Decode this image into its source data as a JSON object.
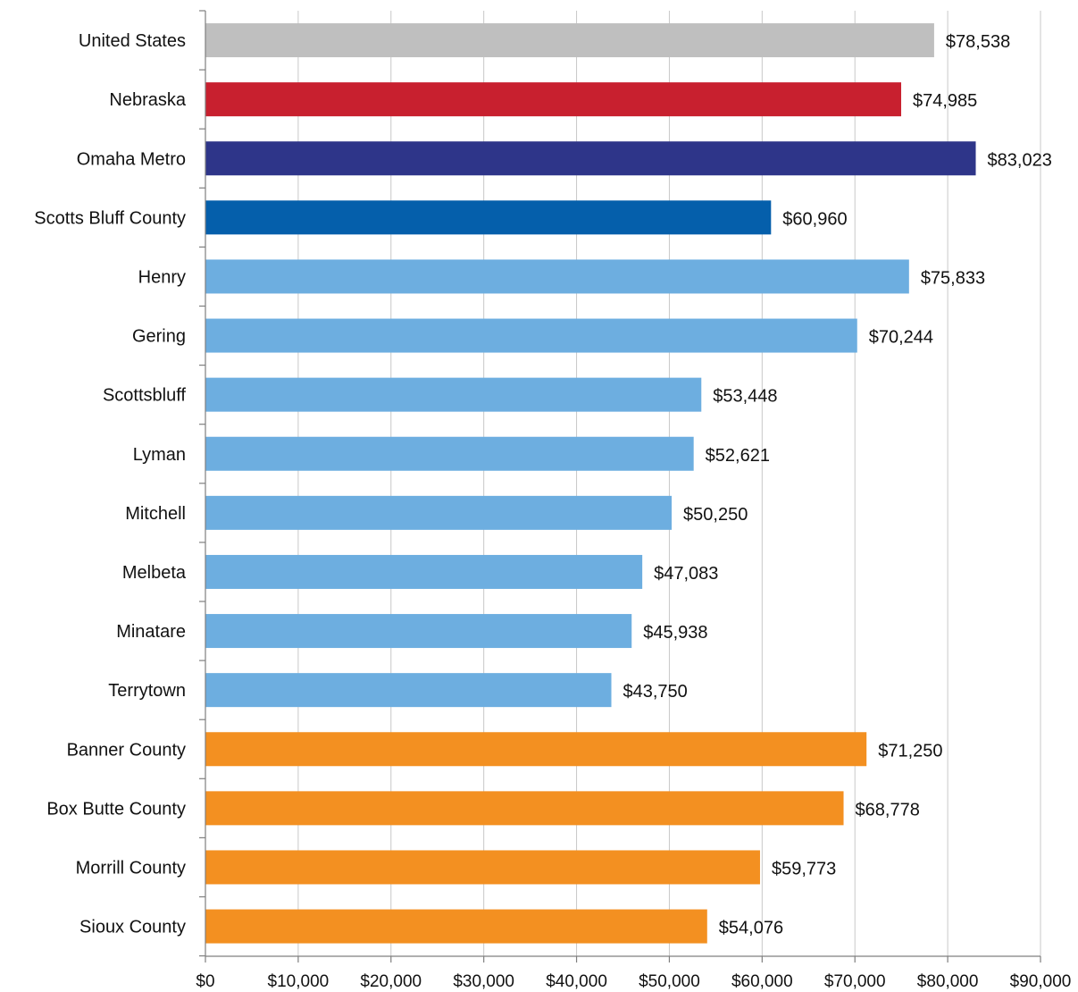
{
  "chart_data": {
    "type": "bar",
    "orientation": "horizontal",
    "title": "",
    "xlabel": "",
    "ylabel": "",
    "xlim": [
      0,
      90000
    ],
    "x_ticks": [
      0,
      10000,
      20000,
      30000,
      40000,
      50000,
      60000,
      70000,
      80000,
      90000
    ],
    "x_tick_labels": [
      "$0",
      "$10,000",
      "$20,000",
      "$30,000",
      "$40,000",
      "$50,000",
      "$60,000",
      "$70,000",
      "$80,000",
      "$90,000"
    ],
    "grid": "vertical gridlines on",
    "legend": "none",
    "categories": [
      "United States",
      "Nebraska",
      "Omaha Metro",
      "Scotts Bluff County",
      "Henry",
      "Gering",
      "Scottsbluff",
      "Lyman",
      "Mitchell",
      "Melbeta",
      "Minatare",
      "Terrytown",
      "Banner County",
      "Box Butte County",
      "Morrill County",
      "Sioux County"
    ],
    "values": [
      78538,
      74985,
      83023,
      60960,
      75833,
      70244,
      53448,
      52621,
      50250,
      47083,
      45938,
      43750,
      71250,
      68778,
      59773,
      54076
    ],
    "value_labels": [
      "$78,538",
      "$74,985",
      "$83,023",
      "$60,960",
      "$75,833",
      "$70,244",
      "$53,448",
      "$52,621",
      "$50,250",
      "$47,083",
      "$45,938",
      "$43,750",
      "$71,250",
      "$68,778",
      "$59,773",
      "$54,076"
    ],
    "bar_colors": [
      "#bfbfbf",
      "#c8202f",
      "#2e3589",
      "#055fab",
      "#6daee0",
      "#6daee0",
      "#6daee0",
      "#6daee0",
      "#6daee0",
      "#6daee0",
      "#6daee0",
      "#6daee0",
      "#f39021",
      "#f39021",
      "#f39021",
      "#f39021"
    ],
    "colors": {
      "gridline": "#c8c8c8",
      "axis": "#7f7f7f",
      "text": "#111111"
    }
  }
}
